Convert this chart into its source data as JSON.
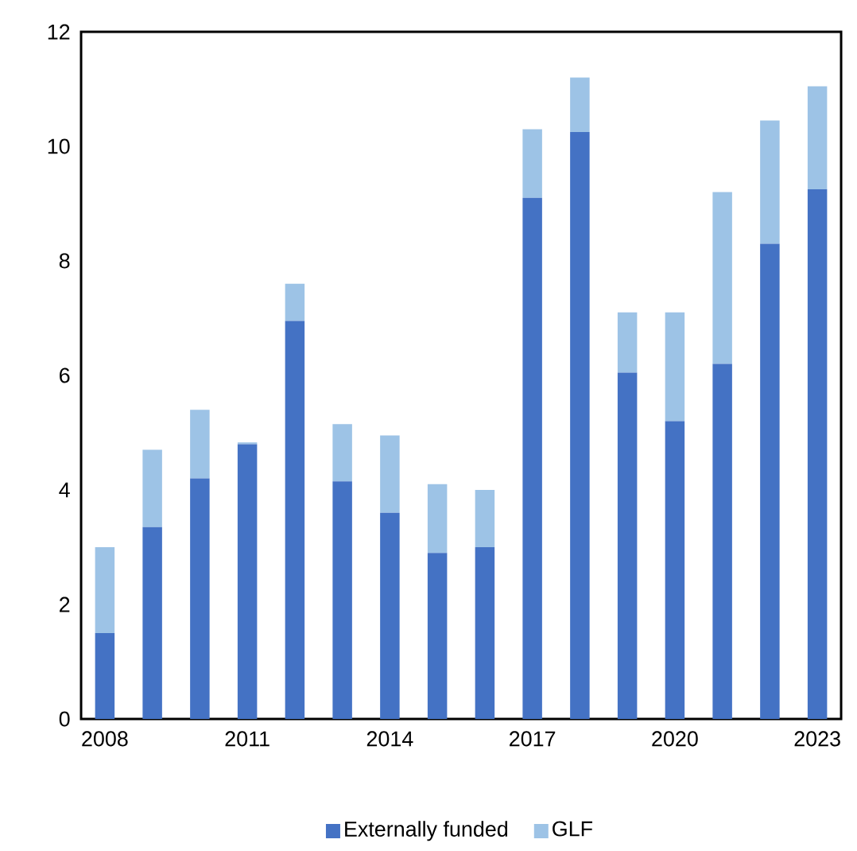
{
  "chart_data": {
    "type": "bar",
    "stacked": true,
    "categories": [
      "2008",
      null,
      null,
      "2011",
      null,
      null,
      "2014",
      null,
      null,
      "2017",
      null,
      null,
      "2020",
      null,
      null,
      "2023"
    ],
    "series": [
      {
        "name": "Externally funded",
        "color": "#4472c4",
        "values": [
          1.5,
          3.35,
          4.2,
          4.8,
          6.95,
          4.15,
          3.6,
          2.9,
          3.0,
          9.1,
          10.25,
          6.05,
          5.2,
          6.2,
          8.3,
          9.25
        ]
      },
      {
        "name": "GLF",
        "color": "#9dc3e6",
        "values": [
          1.5,
          1.35,
          1.2,
          0.03,
          0.65,
          1.0,
          1.35,
          1.2,
          1.0,
          1.2,
          0.95,
          1.05,
          1.9,
          3.0,
          2.15,
          1.8
        ]
      }
    ],
    "ylim": [
      0,
      12
    ],
    "yticks": [
      0,
      2,
      4,
      6,
      8,
      10,
      12
    ],
    "grid": false,
    "legend": "bottom"
  }
}
